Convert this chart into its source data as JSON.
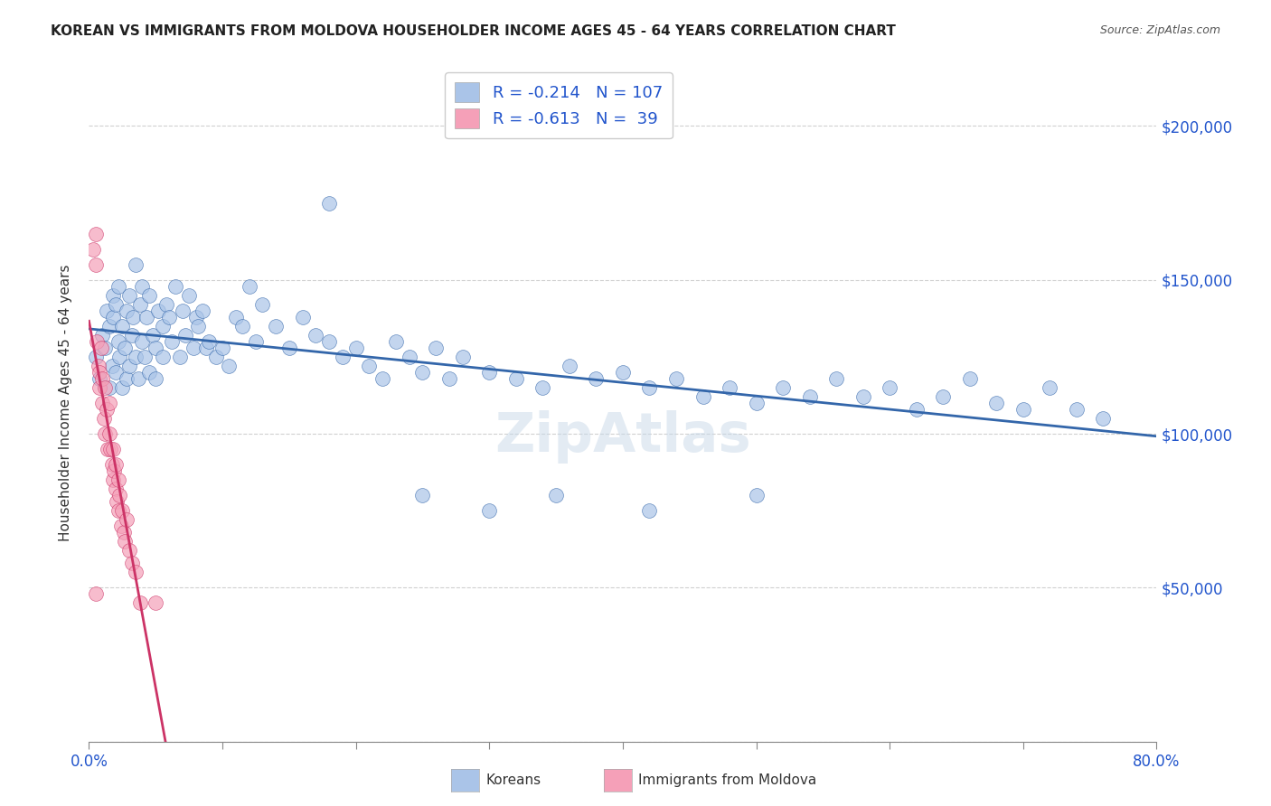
{
  "title": "KOREAN VS IMMIGRANTS FROM MOLDOVA HOUSEHOLDER INCOME AGES 45 - 64 YEARS CORRELATION CHART",
  "source": "Source: ZipAtlas.com",
  "ylabel": "Householder Income Ages 45 - 64 years",
  "xlim": [
    0.0,
    0.8
  ],
  "ylim": [
    0,
    220000
  ],
  "background_color": "#ffffff",
  "grid_color": "#d0d0d0",
  "korean_color": "#aac4e8",
  "moldova_color": "#f5a0b8",
  "korean_line_color": "#3366aa",
  "moldova_line_color": "#cc3366",
  "R_korean": -0.214,
  "N_korean": 107,
  "R_moldova": -0.613,
  "N_moldova": 39,
  "korean_x": [
    0.005,
    0.008,
    0.01,
    0.012,
    0.013,
    0.015,
    0.015,
    0.017,
    0.018,
    0.018,
    0.02,
    0.02,
    0.022,
    0.022,
    0.023,
    0.025,
    0.025,
    0.027,
    0.028,
    0.028,
    0.03,
    0.03,
    0.032,
    0.033,
    0.035,
    0.035,
    0.037,
    0.038,
    0.04,
    0.04,
    0.042,
    0.043,
    0.045,
    0.045,
    0.048,
    0.05,
    0.05,
    0.052,
    0.055,
    0.055,
    0.058,
    0.06,
    0.062,
    0.065,
    0.068,
    0.07,
    0.072,
    0.075,
    0.078,
    0.08,
    0.082,
    0.085,
    0.088,
    0.09,
    0.095,
    0.1,
    0.105,
    0.11,
    0.115,
    0.12,
    0.125,
    0.13,
    0.14,
    0.15,
    0.16,
    0.17,
    0.18,
    0.19,
    0.2,
    0.21,
    0.22,
    0.23,
    0.24,
    0.25,
    0.26,
    0.27,
    0.28,
    0.3,
    0.32,
    0.34,
    0.36,
    0.38,
    0.4,
    0.42,
    0.44,
    0.46,
    0.48,
    0.5,
    0.52,
    0.54,
    0.56,
    0.58,
    0.6,
    0.62,
    0.64,
    0.66,
    0.68,
    0.7,
    0.72,
    0.74,
    0.76,
    0.5,
    0.35,
    0.25,
    0.42,
    0.3,
    0.18
  ],
  "korean_y": [
    125000,
    118000,
    132000,
    128000,
    140000,
    115000,
    135000,
    122000,
    138000,
    145000,
    120000,
    142000,
    130000,
    148000,
    125000,
    135000,
    115000,
    128000,
    140000,
    118000,
    145000,
    122000,
    132000,
    138000,
    125000,
    155000,
    118000,
    142000,
    130000,
    148000,
    125000,
    138000,
    145000,
    120000,
    132000,
    128000,
    118000,
    140000,
    135000,
    125000,
    142000,
    138000,
    130000,
    148000,
    125000,
    140000,
    132000,
    145000,
    128000,
    138000,
    135000,
    140000,
    128000,
    130000,
    125000,
    128000,
    122000,
    138000,
    135000,
    148000,
    130000,
    142000,
    135000,
    128000,
    138000,
    132000,
    130000,
    125000,
    128000,
    122000,
    118000,
    130000,
    125000,
    120000,
    128000,
    118000,
    125000,
    120000,
    118000,
    115000,
    122000,
    118000,
    120000,
    115000,
    118000,
    112000,
    115000,
    110000,
    115000,
    112000,
    118000,
    112000,
    115000,
    108000,
    112000,
    118000,
    110000,
    108000,
    115000,
    108000,
    105000,
    80000,
    80000,
    80000,
    75000,
    75000,
    175000
  ],
  "moldova_x": [
    0.003,
    0.005,
    0.005,
    0.006,
    0.007,
    0.008,
    0.008,
    0.009,
    0.01,
    0.01,
    0.011,
    0.012,
    0.012,
    0.013,
    0.014,
    0.015,
    0.015,
    0.016,
    0.017,
    0.018,
    0.018,
    0.019,
    0.02,
    0.02,
    0.021,
    0.022,
    0.022,
    0.023,
    0.024,
    0.025,
    0.026,
    0.027,
    0.028,
    0.03,
    0.032,
    0.035,
    0.038,
    0.005,
    0.05
  ],
  "moldova_y": [
    160000,
    165000,
    155000,
    130000,
    122000,
    120000,
    115000,
    128000,
    118000,
    110000,
    105000,
    115000,
    100000,
    108000,
    95000,
    100000,
    110000,
    95000,
    90000,
    85000,
    95000,
    88000,
    82000,
    90000,
    78000,
    85000,
    75000,
    80000,
    70000,
    75000,
    68000,
    65000,
    72000,
    62000,
    58000,
    55000,
    45000,
    48000,
    45000
  ]
}
